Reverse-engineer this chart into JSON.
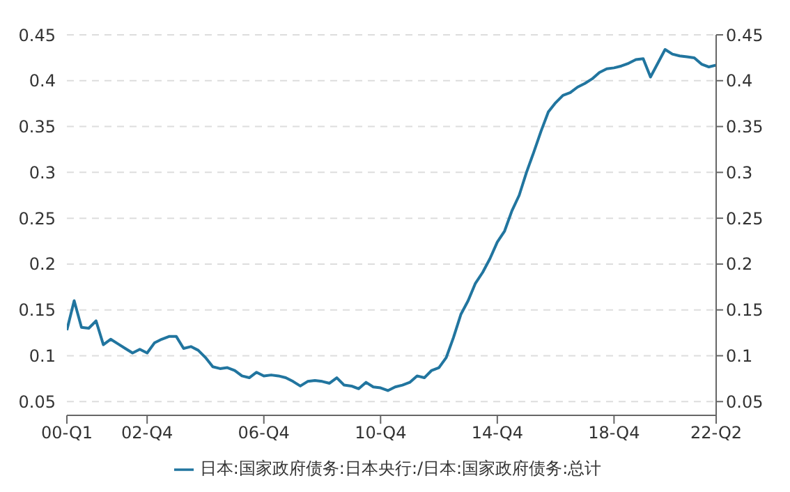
{
  "chart_data": {
    "type": "line",
    "legend": "bottom",
    "grid": "y",
    "line_style": "solid",
    "marker": "none",
    "categories": [
      "00-Q1",
      null,
      null,
      null,
      null,
      null,
      null,
      null,
      null,
      null,
      null,
      "02-Q4",
      null,
      null,
      null,
      null,
      null,
      null,
      null,
      null,
      null,
      null,
      null,
      null,
      null,
      null,
      null,
      "06-Q4",
      null,
      null,
      null,
      null,
      null,
      null,
      null,
      null,
      null,
      null,
      null,
      null,
      null,
      null,
      null,
      "10-Q4",
      null,
      null,
      null,
      null,
      null,
      null,
      null,
      null,
      null,
      null,
      null,
      null,
      null,
      null,
      null,
      "14-Q4",
      null,
      null,
      null,
      null,
      null,
      null,
      null,
      null,
      null,
      null,
      null,
      null,
      null,
      null,
      null,
      "18-Q4",
      null,
      null,
      null,
      null,
      null,
      null,
      null,
      null,
      null,
      null,
      null,
      null,
      null,
      "22-Q2"
    ],
    "ylim": [
      0.035,
      0.45
    ],
    "yticks": [
      0.05,
      0.1,
      0.15,
      0.2,
      0.25,
      0.3,
      0.35,
      0.4,
      0.45
    ],
    "y2lim": [
      0.035,
      0.45
    ],
    "y2ticks": [
      0.05,
      0.1,
      0.15,
      0.2,
      0.25,
      0.3,
      0.35,
      0.4,
      0.45
    ],
    "series": [
      {
        "name": "日本:国家政府债务:日本央行:/日本:国家政府债务:总计",
        "color": "#21759f",
        "values": [
          0.128,
          0.16,
          0.131,
          0.13,
          0.138,
          0.112,
          0.118,
          0.113,
          0.108,
          0.103,
          0.107,
          0.103,
          0.114,
          0.118,
          0.121,
          0.121,
          0.108,
          0.11,
          0.106,
          0.098,
          0.088,
          0.086,
          0.087,
          0.084,
          0.078,
          0.076,
          0.082,
          0.078,
          0.079,
          0.078,
          0.076,
          0.072,
          0.067,
          0.072,
          0.073,
          0.072,
          0.07,
          0.076,
          0.068,
          0.067,
          0.064,
          0.071,
          0.066,
          0.065,
          0.062,
          0.066,
          0.068,
          0.071,
          0.078,
          0.076,
          0.084,
          0.087,
          0.098,
          0.12,
          0.145,
          0.16,
          0.179,
          0.191,
          0.206,
          0.224,
          0.236,
          0.258,
          0.275,
          0.3,
          0.322,
          0.345,
          0.366,
          0.376,
          0.384,
          0.387,
          0.393,
          0.397,
          0.402,
          0.409,
          0.413,
          0.414,
          0.416,
          0.419,
          0.423,
          0.424,
          0.404,
          0.419,
          0.434,
          0.429,
          0.427,
          0.426,
          0.425,
          0.418,
          0.415,
          0.417
        ]
      }
    ]
  }
}
